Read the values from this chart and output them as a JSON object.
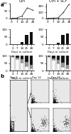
{
  "panel_a_label": "a",
  "panel_b_label": "b",
  "line_left": {
    "title": "Ctrl",
    "x": [
      0,
      7,
      14,
      21,
      28
    ],
    "y": [
      0,
      2,
      15,
      70,
      55
    ],
    "ylim": [
      0,
      100
    ],
    "yticks": [
      0,
      50,
      100
    ],
    "ylabel": "Number of cells (x 10⁶)"
  },
  "line_right": {
    "title": "Ctrl + SCF",
    "x": [
      0,
      7,
      14,
      21,
      28
    ],
    "y": [
      0,
      3,
      10,
      100,
      230
    ],
    "ylim": [
      0,
      250
    ],
    "yticks": [
      0,
      100,
      200
    ],
    "ylabel": ""
  },
  "bar_left": {
    "x_labels": [
      "0",
      "7",
      "14",
      "21",
      "28"
    ],
    "y": [
      1,
      3,
      15,
      65,
      85
    ],
    "ylim": [
      0,
      100
    ],
    "yticks": [
      0,
      50,
      100
    ],
    "ylabel": "% of total CD66b+ cells"
  },
  "bar_right": {
    "x_labels": [
      "0",
      "7",
      "14",
      "21",
      "28"
    ],
    "y": [
      1,
      3,
      10,
      65,
      75
    ],
    "ylim": [
      0,
      100
    ],
    "yticks": [
      0,
      50,
      100
    ],
    "ylabel": ""
  },
  "stacked_left": {
    "x_labels": [
      "0",
      "7",
      "14",
      "21",
      "28"
    ],
    "white": [
      90,
      75,
      55,
      30,
      15
    ],
    "gray": [
      7,
      12,
      22,
      30,
      25
    ],
    "black": [
      3,
      13,
      23,
      40,
      60
    ],
    "ylabel": "% of CD66b+ cells"
  },
  "stacked_right": {
    "x_labels": [
      "0",
      "7",
      "14",
      "21",
      "28"
    ],
    "white": [
      90,
      70,
      50,
      25,
      15
    ],
    "gray": [
      7,
      12,
      20,
      30,
      25
    ],
    "black": [
      3,
      18,
      30,
      45,
      60
    ],
    "ylabel": ""
  },
  "xlabel": "Days in culture",
  "bg_color": "#ffffff",
  "line_color": "#333333",
  "bar_color": "#111111",
  "white_color": "#ffffff",
  "gray_color": "#999999",
  "dark_gray_color": "#444444",
  "black_color": "#111111",
  "tick_fontsize": 3.0,
  "label_fontsize": 2.8,
  "title_fontsize": 3.5
}
